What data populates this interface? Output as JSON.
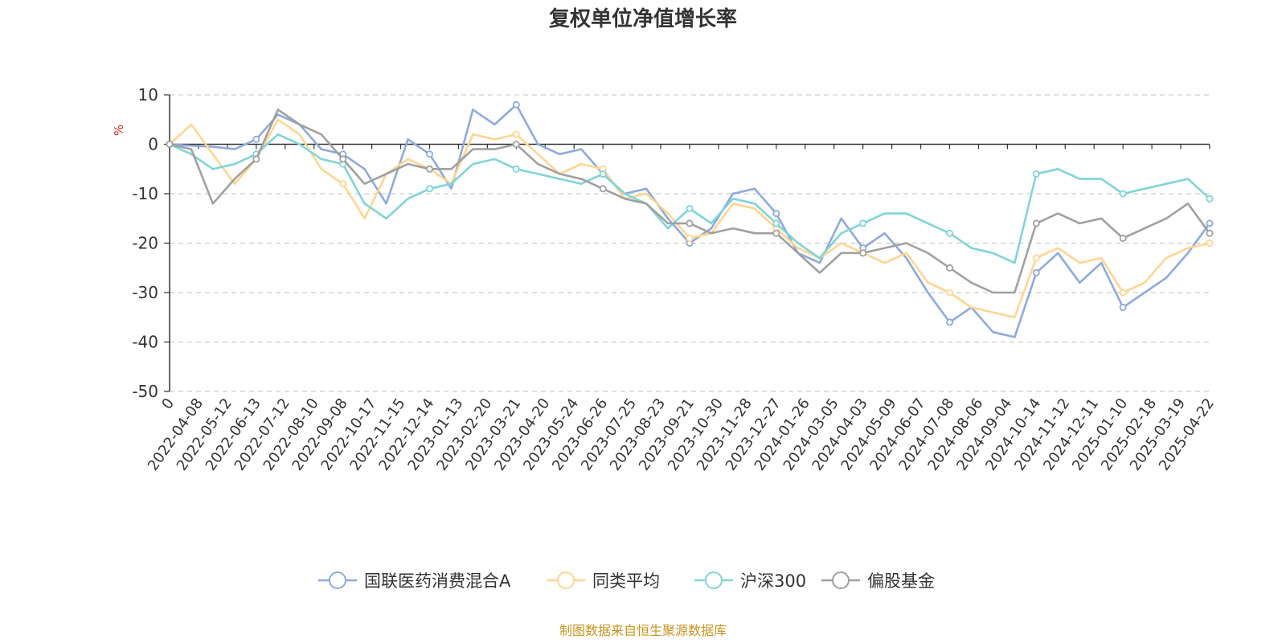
{
  "chart_data": {
    "type": "line",
    "title": "复权单位净值增长率",
    "ylabel": "%",
    "ylim": [
      -50,
      10
    ],
    "yticks": [
      10,
      0,
      -10,
      -20,
      -30,
      -40,
      -50
    ],
    "x_labels": [
      "0",
      "2022-04-08",
      "2022-05-12",
      "2022-06-13",
      "2022-07-12",
      "2022-08-10",
      "2022-09-08",
      "2022-10-17",
      "2022-11-15",
      "2022-12-14",
      "2023-01-13",
      "2023-02-20",
      "2023-03-21",
      "2023-04-20",
      "2023-05-24",
      "2023-06-26",
      "2023-07-25",
      "2023-08-23",
      "2023-09-21",
      "2023-10-30",
      "2023-11-28",
      "2023-12-27",
      "2024-01-26",
      "2024-03-05",
      "2024-04-03",
      "2024-05-09",
      "2024-06-07",
      "2024-07-08",
      "2024-08-06",
      "2024-09-04",
      "2024-10-14",
      "2024-11-12",
      "2024-12-11",
      "2025-01-10",
      "2025-02-18",
      "2025-03-19",
      "2025-04-22"
    ],
    "grid": "horizontal-dashed",
    "legend_position": "bottom",
    "series": [
      {
        "name": "国联医药消费混合A",
        "color": "#8eaadb",
        "values": [
          0,
          -0.3,
          -0.5,
          -1,
          1,
          6,
          4,
          -1,
          -2,
          -5,
          -12,
          1,
          -2,
          -9,
          7,
          4,
          8,
          0,
          -2,
          -1,
          -6,
          -10,
          -9,
          -15,
          -20,
          -17,
          -10,
          -9,
          -14,
          -22,
          -24,
          -15,
          -21,
          -18,
          -23,
          -30,
          -36,
          -33,
          -38,
          -39,
          -26,
          -22,
          -28,
          -24,
          -33,
          -30,
          -27,
          -22,
          -16
        ]
      },
      {
        "name": "同类平均",
        "color": "#ffd591",
        "values": [
          0,
          4,
          -2,
          -8,
          -3,
          5,
          2,
          -5,
          -8,
          -15,
          -6,
          -3,
          -5,
          -8,
          2,
          1,
          2,
          -2,
          -6,
          -4,
          -5,
          -11,
          -10,
          -14,
          -19,
          -18,
          -12,
          -13,
          -17,
          -21,
          -23,
          -20,
          -22,
          -24,
          -22,
          -28,
          -30,
          -33,
          -34,
          -35,
          -23,
          -21,
          -24,
          -23,
          -30,
          -28,
          -23,
          -21,
          -20
        ]
      },
      {
        "name": "沪深300",
        "color": "#80d4d8",
        "values": [
          0,
          -2,
          -5,
          -4,
          -2,
          2,
          0,
          -3,
          -4,
          -12,
          -15,
          -11,
          -9,
          -8,
          -4,
          -3,
          -5,
          -6,
          -7,
          -8,
          -6,
          -10,
          -12,
          -17,
          -13,
          -16,
          -11,
          -12,
          -16,
          -20,
          -23,
          -18,
          -16,
          -14,
          -14,
          -16,
          -18,
          -21,
          -22,
          -24,
          -6,
          -5,
          -7,
          -7,
          -10,
          -9,
          -8,
          -7,
          -11
        ]
      },
      {
        "name": "偏股基金",
        "color": "#a0a0a0",
        "values": [
          0,
          -1,
          -12,
          -7,
          -3,
          7,
          4,
          2,
          -3,
          -8,
          -6,
          -4,
          -5,
          -5,
          -1,
          -1,
          0,
          -4,
          -6,
          -7,
          -9,
          -11,
          -12,
          -16,
          -16,
          -18,
          -17,
          -18,
          -18,
          -22,
          -26,
          -22,
          -22,
          -21,
          -20,
          -22,
          -25,
          -28,
          -30,
          -30,
          -16,
          -14,
          -16,
          -15,
          -19,
          -17,
          -15,
          -12,
          -18
        ]
      }
    ]
  },
  "source_note": "制图数据来自恒生聚源数据库"
}
